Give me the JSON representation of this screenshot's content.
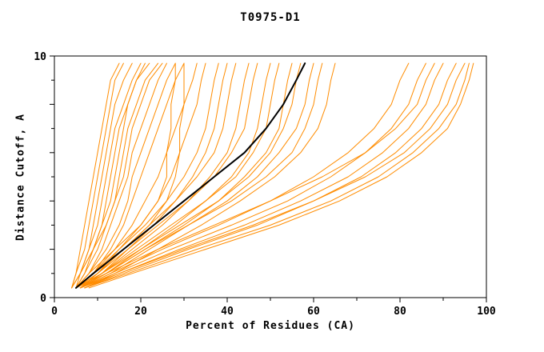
{
  "chart_data": {
    "type": "line",
    "title": "T0975-D1",
    "xlabel": "Percent of Residues (CA)",
    "ylabel": "Distance Cutoff, A",
    "xlim": [
      0,
      100
    ],
    "ylim": [
      0,
      10
    ],
    "grid": false,
    "legend": "none",
    "x_ticks_major": [
      0,
      20,
      40,
      60,
      80,
      100
    ],
    "x_ticks_minor": [
      10,
      30,
      50,
      70,
      90
    ],
    "y_ticks_major": [
      0,
      2,
      4,
      6,
      8,
      10
    ],
    "y_ticks_minor": [
      1,
      3,
      5,
      7,
      9
    ],
    "x_tick_labels": [
      "0",
      "20",
      "40",
      "60",
      "80",
      "100"
    ],
    "y_tick_labels": [
      {
        "value": 10,
        "label": "10"
      },
      {
        "value": 0,
        "label": "0"
      }
    ],
    "colors": {
      "model": "#ff8c00",
      "highlight": "#000000",
      "axis": "#000000",
      "background": "#ffffff"
    },
    "y_levels": [
      0.4,
      1,
      2,
      3,
      4,
      5,
      6,
      7,
      8,
      9,
      9.7
    ],
    "series": [
      {
        "name": "highlight-model",
        "color": "#000000",
        "width": 2,
        "x": [
          5,
          9,
          16,
          23,
          30,
          37,
          44,
          49,
          53,
          56,
          58
        ]
      },
      {
        "name": "model",
        "color": "#ff8c00",
        "width": 1,
        "x": [
          4,
          5,
          6,
          7,
          8,
          9,
          10,
          11,
          12,
          13,
          15
        ]
      },
      {
        "name": "model",
        "color": "#ff8c00",
        "width": 1,
        "x": [
          4,
          5,
          7,
          8,
          9,
          10,
          11,
          12,
          13,
          14,
          16
        ]
      },
      {
        "name": "model",
        "color": "#ff8c00",
        "width": 1,
        "x": [
          4,
          6,
          8,
          9,
          10,
          11,
          12,
          13,
          14,
          16,
          18
        ]
      },
      {
        "name": "model",
        "color": "#ff8c00",
        "width": 1,
        "x": [
          5,
          6,
          8,
          10,
          11,
          12,
          13,
          14,
          16,
          18,
          20
        ]
      },
      {
        "name": "model",
        "color": "#ff8c00",
        "width": 1,
        "x": [
          4,
          6,
          9,
          11,
          12,
          13,
          14,
          15,
          17,
          19,
          21
        ]
      },
      {
        "name": "model",
        "color": "#ff8c00",
        "width": 1,
        "x": [
          5,
          7,
          9,
          11,
          13,
          14,
          15,
          16,
          17,
          19,
          22
        ]
      },
      {
        "name": "model",
        "color": "#ff8c00",
        "width": 1,
        "x": [
          5,
          7,
          10,
          12,
          14,
          15,
          16,
          17,
          19,
          21,
          24
        ]
      },
      {
        "name": "model",
        "color": "#ff8c00",
        "width": 1,
        "x": [
          4,
          6,
          9,
          12,
          14,
          16,
          17,
          18,
          20,
          22,
          25
        ]
      },
      {
        "name": "model",
        "color": "#ff8c00",
        "width": 1,
        "x": [
          5,
          8,
          11,
          13,
          15,
          17,
          18,
          20,
          22,
          24,
          26
        ]
      },
      {
        "name": "model",
        "color": "#ff8c00",
        "width": 1,
        "x": [
          5,
          8,
          12,
          15,
          17,
          18,
          20,
          22,
          24,
          26,
          28
        ]
      },
      {
        "name": "model",
        "color": "#ff8c00",
        "width": 1,
        "x": [
          5,
          9,
          13,
          16,
          18,
          20,
          22,
          24,
          26,
          28,
          30
        ]
      },
      {
        "name": "model",
        "color": "#ff8c00",
        "width": 1,
        "x": [
          5,
          8,
          14,
          20,
          24,
          26,
          26,
          27,
          27,
          28,
          28
        ]
      },
      {
        "name": "model",
        "color": "#ff8c00",
        "width": 1,
        "x": [
          6,
          10,
          16,
          22,
          26,
          28,
          29,
          29,
          30,
          30,
          30
        ]
      },
      {
        "name": "model",
        "color": "#ff8c00",
        "width": 1,
        "x": [
          5,
          9,
          14,
          18,
          21,
          24,
          26,
          28,
          30,
          32,
          33
        ]
      },
      {
        "name": "model",
        "color": "#ff8c00",
        "width": 1,
        "x": [
          6,
          10,
          15,
          20,
          24,
          27,
          29,
          31,
          33,
          34,
          35
        ]
      },
      {
        "name": "model",
        "color": "#ff8c00",
        "width": 1,
        "x": [
          5,
          9,
          15,
          21,
          26,
          30,
          33,
          35,
          36,
          37,
          38
        ]
      },
      {
        "name": "model",
        "color": "#ff8c00",
        "width": 1,
        "x": [
          6,
          11,
          17,
          23,
          28,
          32,
          35,
          37,
          38,
          39,
          40
        ]
      },
      {
        "name": "model",
        "color": "#ff8c00",
        "width": 1,
        "x": [
          5,
          10,
          16,
          22,
          28,
          33,
          37,
          39,
          40,
          41,
          42
        ]
      },
      {
        "name": "model",
        "color": "#ff8c00",
        "width": 1,
        "x": [
          6,
          11,
          18,
          25,
          31,
          36,
          40,
          42,
          43,
          44,
          45
        ]
      },
      {
        "name": "model",
        "color": "#ff8c00",
        "width": 1,
        "x": [
          5,
          10,
          17,
          24,
          31,
          37,
          41,
          44,
          45,
          46,
          47
        ]
      },
      {
        "name": "model",
        "color": "#ff8c00",
        "width": 1,
        "x": [
          6,
          12,
          20,
          28,
          35,
          41,
          45,
          47,
          48,
          49,
          50
        ]
      },
      {
        "name": "model",
        "color": "#ff8c00",
        "width": 1,
        "x": [
          5,
          11,
          19,
          27,
          35,
          42,
          46,
          49,
          50,
          51,
          52
        ]
      },
      {
        "name": "model",
        "color": "#ff8c00",
        "width": 1,
        "x": [
          6,
          12,
          21,
          30,
          38,
          44,
          49,
          52,
          53,
          54,
          55
        ]
      },
      {
        "name": "model",
        "color": "#ff8c00",
        "width": 1,
        "x": [
          5,
          11,
          20,
          29,
          38,
          45,
          50,
          53,
          55,
          56,
          57
        ]
      },
      {
        "name": "model",
        "color": "#ff8c00",
        "width": 1,
        "x": [
          6,
          13,
          22,
          31,
          40,
          47,
          52,
          56,
          58,
          59,
          60
        ]
      },
      {
        "name": "model",
        "color": "#ff8c00",
        "width": 1,
        "x": [
          6,
          12,
          21,
          31,
          41,
          49,
          55,
          58,
          60,
          61,
          62
        ]
      },
      {
        "name": "model",
        "color": "#ff8c00",
        "width": 1,
        "x": [
          7,
          14,
          24,
          34,
          43,
          51,
          57,
          61,
          63,
          64,
          65
        ]
      },
      {
        "name": "model",
        "color": "#ff8c00",
        "width": 1,
        "x": [
          6,
          13,
          25,
          38,
          50,
          60,
          68,
          74,
          78,
          80,
          82
        ]
      },
      {
        "name": "model",
        "color": "#ff8c00",
        "width": 1,
        "x": [
          6,
          14,
          27,
          41,
          54,
          64,
          72,
          78,
          82,
          84,
          86
        ]
      },
      {
        "name": "model",
        "color": "#ff8c00",
        "width": 1,
        "x": [
          7,
          15,
          29,
          44,
          57,
          68,
          76,
          82,
          86,
          88,
          90
        ]
      },
      {
        "name": "model",
        "color": "#ff8c00",
        "width": 1,
        "x": [
          7,
          16,
          31,
          47,
          60,
          71,
          79,
          85,
          89,
          91,
          93
        ]
      },
      {
        "name": "model",
        "color": "#ff8c00",
        "width": 1,
        "x": [
          6,
          15,
          30,
          46,
          60,
          72,
          81,
          87,
          91,
          93,
          95
        ]
      },
      {
        "name": "model",
        "color": "#ff8c00",
        "width": 1,
        "x": [
          7,
          17,
          33,
          50,
          64,
          75,
          83,
          89,
          93,
          95,
          96
        ]
      },
      {
        "name": "model",
        "color": "#ff8c00",
        "width": 1,
        "x": [
          8,
          18,
          35,
          52,
          66,
          77,
          85,
          91,
          94,
          96,
          97
        ]
      },
      {
        "name": "model",
        "color": "#ff8c00",
        "width": 1,
        "x": [
          5,
          12,
          24,
          37,
          50,
          62,
          72,
          79,
          84,
          86,
          88
        ]
      }
    ]
  }
}
